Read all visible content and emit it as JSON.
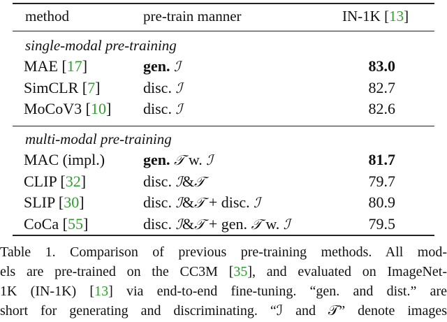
{
  "headers": {
    "method": "method",
    "manner": "pre-train manner",
    "score_pre": "IN-1K [",
    "score_ref": "13",
    "score_post": "]"
  },
  "sections": [
    {
      "title": "single-modal pre-training",
      "rows": [
        {
          "method": "MAE",
          "ref": "17",
          "manner": [
            {
              "t": "gen. ",
              "b": true
            },
            {
              "t": "ℐ",
              "cal": true
            }
          ],
          "score": "83.0",
          "bold": true
        },
        {
          "method": "SimCLR",
          "ref": "7",
          "manner": [
            {
              "t": "disc. "
            },
            {
              "t": "ℐ",
              "cal": true
            }
          ],
          "score": "82.7"
        },
        {
          "method": "MoCoV3",
          "ref": "10",
          "manner": [
            {
              "t": "disc. "
            },
            {
              "t": "ℐ",
              "cal": true
            }
          ],
          "score": "82.6"
        }
      ]
    },
    {
      "title": "multi-modal pre-training",
      "rows": [
        {
          "method": "MAC (impl.)",
          "ref": "",
          "manner": [
            {
              "t": "gen. ",
              "b": true
            },
            {
              "t": "𝒯",
              "cal": true
            },
            {
              "t": " w. "
            },
            {
              "t": "ℐ",
              "cal": true
            }
          ],
          "score": "81.7",
          "bold": true
        },
        {
          "method": "CLIP",
          "ref": "32",
          "manner": [
            {
              "t": "disc. "
            },
            {
              "t": "ℐ",
              "cal": true
            },
            {
              "t": "&"
            },
            {
              "t": "𝒯",
              "cal": true
            }
          ],
          "score": "79.7"
        },
        {
          "method": "SLIP",
          "ref": "30",
          "manner": [
            {
              "t": "disc. "
            },
            {
              "t": "ℐ",
              "cal": true
            },
            {
              "t": "&"
            },
            {
              "t": "𝒯",
              "cal": true
            },
            {
              "t": " + disc. "
            },
            {
              "t": "ℐ",
              "cal": true
            }
          ],
          "score": "80.9"
        },
        {
          "method": "CoCa",
          "ref": "55",
          "manner": [
            {
              "t": "disc. "
            },
            {
              "t": "ℐ",
              "cal": true
            },
            {
              "t": "&"
            },
            {
              "t": "𝒯",
              "cal": true
            },
            {
              "t": " + gen. "
            },
            {
              "t": "𝒯",
              "cal": true
            },
            {
              "t": " w. "
            },
            {
              "t": "ℐ",
              "cal": true
            }
          ],
          "score": "79.5"
        }
      ]
    }
  ],
  "caption": [
    "Table 1. Comparison of previous pre-training methods. All mod-",
    "els are pre-trained on the CC3M [35], and evaluated on ImageNet-",
    "1K (IN-1K) [13] via end-to-end fine-tuning. “gen. and dist.” are",
    "short for generating and discriminating. “ℐ and 𝒯” denote images"
  ]
}
